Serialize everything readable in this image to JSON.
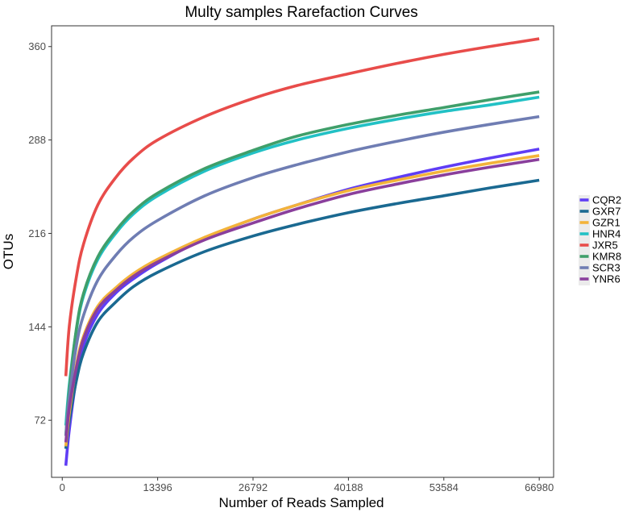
{
  "chart_data": {
    "type": "line",
    "title": "Multy samples Rarefaction Curves",
    "xlabel": "Number of Reads Sampled",
    "ylabel": "OTUs",
    "x_ticks": [
      0,
      13396,
      26792,
      40188,
      53584,
      66980
    ],
    "x_tick_labels": [
      "0",
      "13396",
      "26792",
      "40188",
      "53584",
      "66980"
    ],
    "y_ticks": [
      72,
      144,
      216,
      288,
      360
    ],
    "y_tick_labels": [
      "72",
      "144",
      "216",
      "288",
      "360"
    ],
    "xlim": [
      -1500,
      69000
    ],
    "ylim": [
      28,
      376
    ],
    "grid": false,
    "legend_position": "right",
    "series": [
      {
        "name": "CQR2",
        "color": "#5f3df5",
        "x": [
          500,
          1000,
          2000,
          3000,
          5000,
          7500,
          10000,
          13396,
          20000,
          26792,
          33000,
          40188,
          47000,
          53584,
          60000,
          66980
        ],
        "values": [
          37,
          65,
          105,
          130,
          154,
          170,
          181,
          193,
          212,
          227,
          238,
          250,
          259,
          267,
          274,
          281
        ]
      },
      {
        "name": "GXR7",
        "color": "#1a6991",
        "x": [
          500,
          1000,
          2000,
          3000,
          5000,
          7500,
          10000,
          13396,
          20000,
          26792,
          33000,
          40188,
          47000,
          53584,
          60000,
          66980
        ],
        "values": [
          50,
          72,
          103,
          124,
          148,
          163,
          175,
          186,
          202,
          214,
          223,
          232,
          239,
          245,
          251,
          257
        ]
      },
      {
        "name": "GZR1",
        "color": "#f3b33a",
        "x": [
          500,
          1000,
          2000,
          3000,
          5000,
          7500,
          10000,
          13396,
          20000,
          26792,
          33000,
          40188,
          47000,
          53584,
          60000,
          66980
        ],
        "values": [
          52,
          78,
          115,
          137,
          160,
          174,
          185,
          196,
          213,
          227,
          238,
          249,
          257,
          264,
          270,
          276
        ]
      },
      {
        "name": "HNR4",
        "color": "#22c1c5",
        "x": [
          500,
          1000,
          2000,
          3000,
          5000,
          7500,
          10000,
          13396,
          20000,
          26792,
          33000,
          40188,
          47000,
          53584,
          60000,
          66980
        ],
        "values": [
          68,
          100,
          142,
          168,
          196,
          216,
          231,
          245,
          264,
          278,
          288,
          297,
          304,
          310,
          315,
          321
        ]
      },
      {
        "name": "JXR5",
        "color": "#e84c4a",
        "x": [
          500,
          1000,
          2000,
          3000,
          5000,
          7500,
          10000,
          13396,
          20000,
          26792,
          33000,
          40188,
          47000,
          53584,
          60000,
          66980
        ],
        "values": [
          106,
          145,
          183,
          208,
          238,
          259,
          274,
          288,
          306,
          320,
          330,
          339,
          347,
          354,
          360,
          366
        ]
      },
      {
        "name": "KMR8",
        "color": "#3f9f6a",
        "x": [
          500,
          1000,
          2000,
          3000,
          5000,
          7500,
          10000,
          13396,
          20000,
          26792,
          33000,
          40188,
          47000,
          53584,
          60000,
          66980
        ],
        "values": [
          60,
          96,
          143,
          170,
          198,
          218,
          233,
          247,
          266,
          280,
          291,
          300,
          307,
          313,
          319,
          325
        ]
      },
      {
        "name": "SCR3",
        "color": "#6f7db3",
        "x": [
          500,
          1000,
          2000,
          3000,
          5000,
          7500,
          10000,
          13396,
          20000,
          26792,
          33000,
          40188,
          47000,
          53584,
          60000,
          66980
        ],
        "values": [
          60,
          90,
          130,
          153,
          180,
          199,
          213,
          226,
          245,
          259,
          269,
          279,
          287,
          294,
          300,
          306
        ]
      },
      {
        "name": "YNR6",
        "color": "#8a3f9c",
        "x": [
          500,
          1000,
          2000,
          3000,
          5000,
          7500,
          10000,
          13396,
          20000,
          26792,
          33000,
          40188,
          47000,
          53584,
          60000,
          66980
        ],
        "values": [
          55,
          82,
          113,
          135,
          158,
          172,
          183,
          194,
          211,
          224,
          235,
          246,
          254,
          261,
          267,
          273
        ]
      }
    ]
  }
}
